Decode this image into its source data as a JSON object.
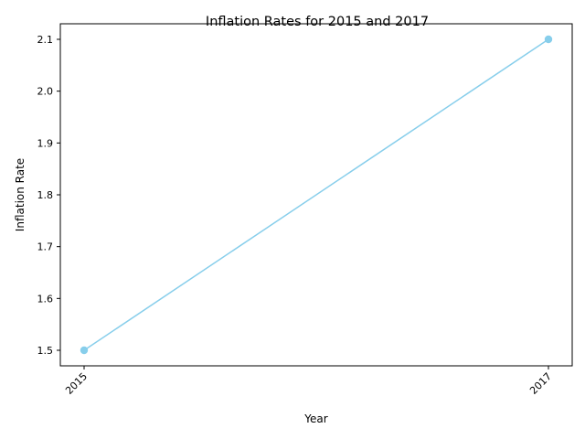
{
  "chart_data": {
    "type": "line",
    "title": "Inflation Rates for 2015 and 2017",
    "xlabel": "Year",
    "ylabel": "Inflation Rate",
    "categories": [
      "2015",
      "2017"
    ],
    "series": [
      {
        "values": [
          1.5,
          2.1
        ],
        "color": "#87ceeb"
      }
    ],
    "yticks": [
      1.5,
      1.6,
      1.7,
      1.8,
      1.9,
      2.0,
      2.1
    ],
    "ylim": [
      1.47,
      2.13
    ],
    "grid": false,
    "x_tick_rotation": 45
  }
}
